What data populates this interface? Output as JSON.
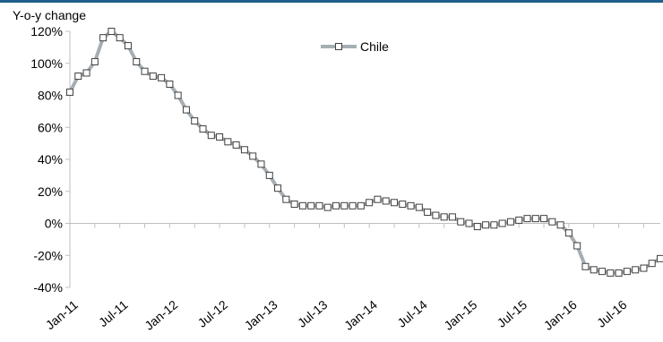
{
  "colors": {
    "top_rule": "#1f5f8b",
    "series_line": "#a6aeb3",
    "marker_stroke": "#404040",
    "marker_fill": "#ffffff",
    "axis": "#bfbfbf",
    "text": "#000000"
  },
  "chart_data": {
    "type": "line",
    "title": "",
    "ylabel": "Y-o-y change",
    "xlabel": "",
    "ylim": [
      -40,
      120
    ],
    "y_ticks": [
      120,
      100,
      80,
      60,
      40,
      20,
      0,
      -20,
      -40
    ],
    "y_tick_labels": [
      "120%",
      "100%",
      "80%",
      "60%",
      "40%",
      "20%",
      "0%",
      "-20%",
      "-40%"
    ],
    "x_tick_labels": [
      "Jan-11",
      "Jul-11",
      "Jan-12",
      "Jul-12",
      "Jan-13",
      "Jul-13",
      "Jan-14",
      "Jul-14",
      "Jan-15",
      "Jul-15",
      "Jan-16",
      "Jul-16"
    ],
    "x_tick_index_step": 6,
    "grid": false,
    "legend_position": "top-right",
    "series": [
      {
        "name": "Chile",
        "start": "Jan-11",
        "frequency": "monthly",
        "values": [
          82,
          92,
          94,
          101,
          116,
          120,
          116,
          111,
          101,
          95,
          92,
          91,
          87,
          80,
          71,
          64,
          59,
          55,
          54,
          51,
          49,
          46,
          42,
          37,
          30,
          22,
          15,
          12,
          11,
          11,
          11,
          10,
          11,
          11,
          11,
          11,
          13,
          15,
          14,
          13,
          12,
          11,
          10,
          7,
          5,
          4,
          4,
          1,
          0,
          -2,
          -1,
          -1,
          0,
          1,
          2,
          3,
          3,
          3,
          1,
          -1,
          -6,
          -14,
          -27,
          -29,
          -30,
          -31,
          -31,
          -30,
          -29,
          -28,
          -25,
          -22
        ]
      }
    ]
  }
}
